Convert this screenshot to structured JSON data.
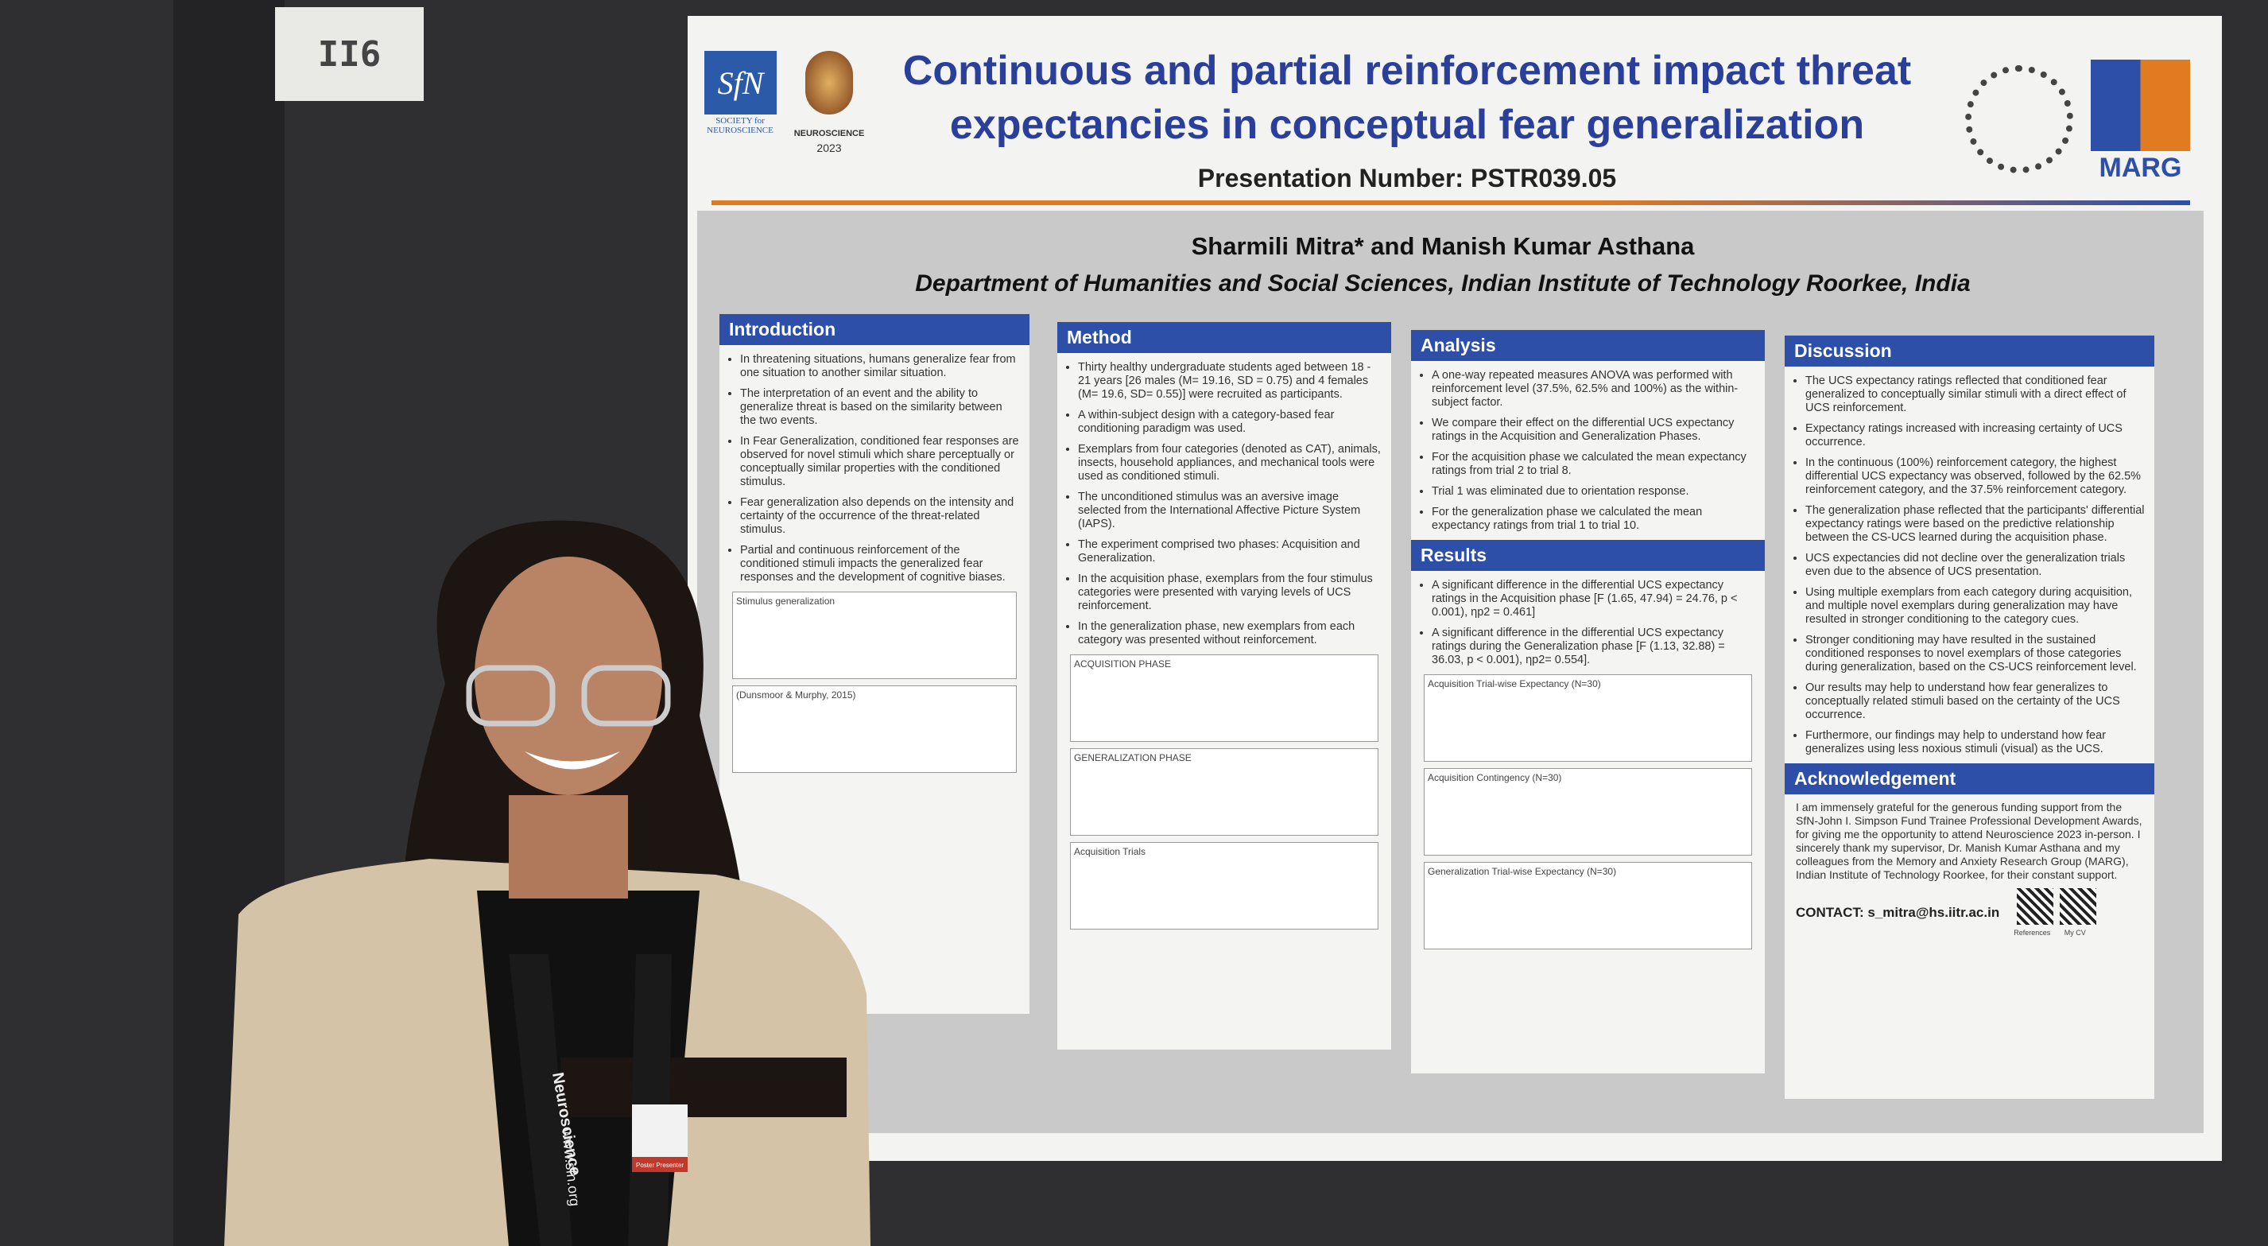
{
  "board_label": "II6",
  "poster": {
    "logos": {
      "sfn": "SfN",
      "society": "SOCIETY for NEUROSCIENCE",
      "neuro": "NEUROSCIENCE",
      "year": "2023",
      "marg": "MARG"
    },
    "title": "Continuous and partial reinforcement impact threat expectancies in conceptual fear generalization",
    "presentation_number": "Presentation Number: PSTR039.05",
    "authors": "Sharmili Mitra* and Manish Kumar Asthana",
    "affiliation": "Department of Humanities and Social Sciences, Indian Institute of Technology Roorkee, India",
    "sections": [
      {
        "heading": "Introduction",
        "bullets": [
          "In threatening situations, humans generalize fear from one situation to another similar situation.",
          "The interpretation of an event and the ability to generalize threat is based on the similarity between the two events.",
          "In Fear Generalization, conditioned fear responses are observed for novel stimuli which share perceptually or conceptually similar properties with the conditioned stimulus.",
          "Fear generalization also depends on the intensity and certainty of the occurrence of the threat-related stimulus.",
          "Partial and continuous reinforcement of the conditioned stimuli impacts the generalized fear responses and the development of cognitive biases."
        ],
        "figures": [
          "Stimulus generalization",
          "(Dunsmoor & Murphy, 2015)"
        ]
      },
      {
        "heading": "Method",
        "bullets": [
          "Thirty healthy undergraduate students aged between 18 - 21 years [26 males (M= 19.16, SD = 0.75) and 4 females (M= 19.6, SD= 0.55)] were recruited as participants.",
          "A within-subject design with a category-based fear conditioning paradigm was used.",
          "Exemplars from four categories (denoted as CAT), animals, insects, household appliances, and mechanical tools were used as conditioned stimuli.",
          "The unconditioned stimulus was an aversive image selected from the International Affective Picture System (IAPS).",
          "The experiment comprised two phases: Acquisition and Generalization.",
          "In the acquisition phase, exemplars from the four stimulus categories were presented with varying levels of UCS reinforcement.",
          "In the generalization phase, new exemplars from each category was presented without reinforcement."
        ],
        "figures": [
          "ACQUISITION PHASE",
          "GENERALIZATION PHASE",
          "Acquisition Trials"
        ]
      },
      {
        "heading": "Analysis",
        "bullets": [
          "A one-way repeated measures ANOVA was performed with reinforcement level (37.5%, 62.5% and 100%) as the within-subject factor.",
          "We compare their effect on the differential UCS expectancy ratings in the Acquisition and Generalization Phases.",
          "For the acquisition phase we calculated the mean expectancy ratings from trial 2 to trial 8.",
          "Trial 1 was eliminated due to orientation response.",
          "For the generalization phase we calculated the mean expectancy ratings from trial 1 to trial 10."
        ],
        "figures": []
      },
      {
        "heading": "Results",
        "bullets": [
          "A significant difference in the differential UCS expectancy ratings in the Acquisition phase [F (1.65, 47.94) = 24.76, p < 0.001), ηp2 = 0.461]",
          "A significant difference in the differential UCS expectancy ratings during the Generalization phase [F (1.13, 32.88) = 36.03, p < 0.001), ηp2= 0.554]."
        ],
        "figures": [
          "Acquisition Trial-wise Expectancy (N=30)",
          "Acquisition Contingency (N=30)",
          "Generalization Trial-wise Expectancy (N=30)"
        ]
      },
      {
        "heading": "Discussion",
        "bullets": [
          "The UCS expectancy ratings reflected that conditioned fear generalized to conceptually similar stimuli with a direct effect of UCS reinforcement.",
          "Expectancy ratings increased with increasing certainty of UCS occurrence.",
          "In the continuous (100%) reinforcement category, the highest differential UCS expectancy was observed, followed by the 62.5% reinforcement category, and the 37.5% reinforcement category.",
          "The generalization phase reflected that the participants' differential expectancy ratings were based on the predictive relationship between the CS-UCS learned during the acquisition phase.",
          "UCS expectancies did not decline over the generalization trials even due to the absence of UCS presentation.",
          "Using multiple exemplars from each category during acquisition, and multiple novel exemplars during generalization may have resulted in stronger conditioning to the category cues.",
          "Stronger conditioning may have resulted in the sustained conditioned responses to novel exemplars of those categories during generalization, based on the CS-UCS reinforcement level.",
          "Our results may help to understand how fear generalizes to conceptually related stimuli based on the certainty of the UCS occurrence.",
          "Furthermore, our findings may help to understand how fear generalizes using less noxious stimuli (visual) as the UCS."
        ],
        "figures": []
      }
    ],
    "acknowledgement": {
      "heading": "Acknowledgement",
      "text": "I am immensely grateful for the generous funding support from the SfN-John I. Simpson Fund Trainee Professional Development Awards, for giving me the opportunity to attend Neuroscience 2023 in-person. I sincerely thank my supervisor, Dr. Manish Kumar Asthana and my colleagues from the Memory and Anxiety Research Group (MARG), Indian Institute of Technology Roorkee, for their constant support."
    },
    "contact": "CONTACT: s_mitra@hs.iitr.ac.in",
    "qr_labels": [
      "References",
      "My CV"
    ]
  },
  "lanyard": [
    "Neuroscience",
    "www.sfn.org"
  ],
  "badge": "Poster Presenter"
}
